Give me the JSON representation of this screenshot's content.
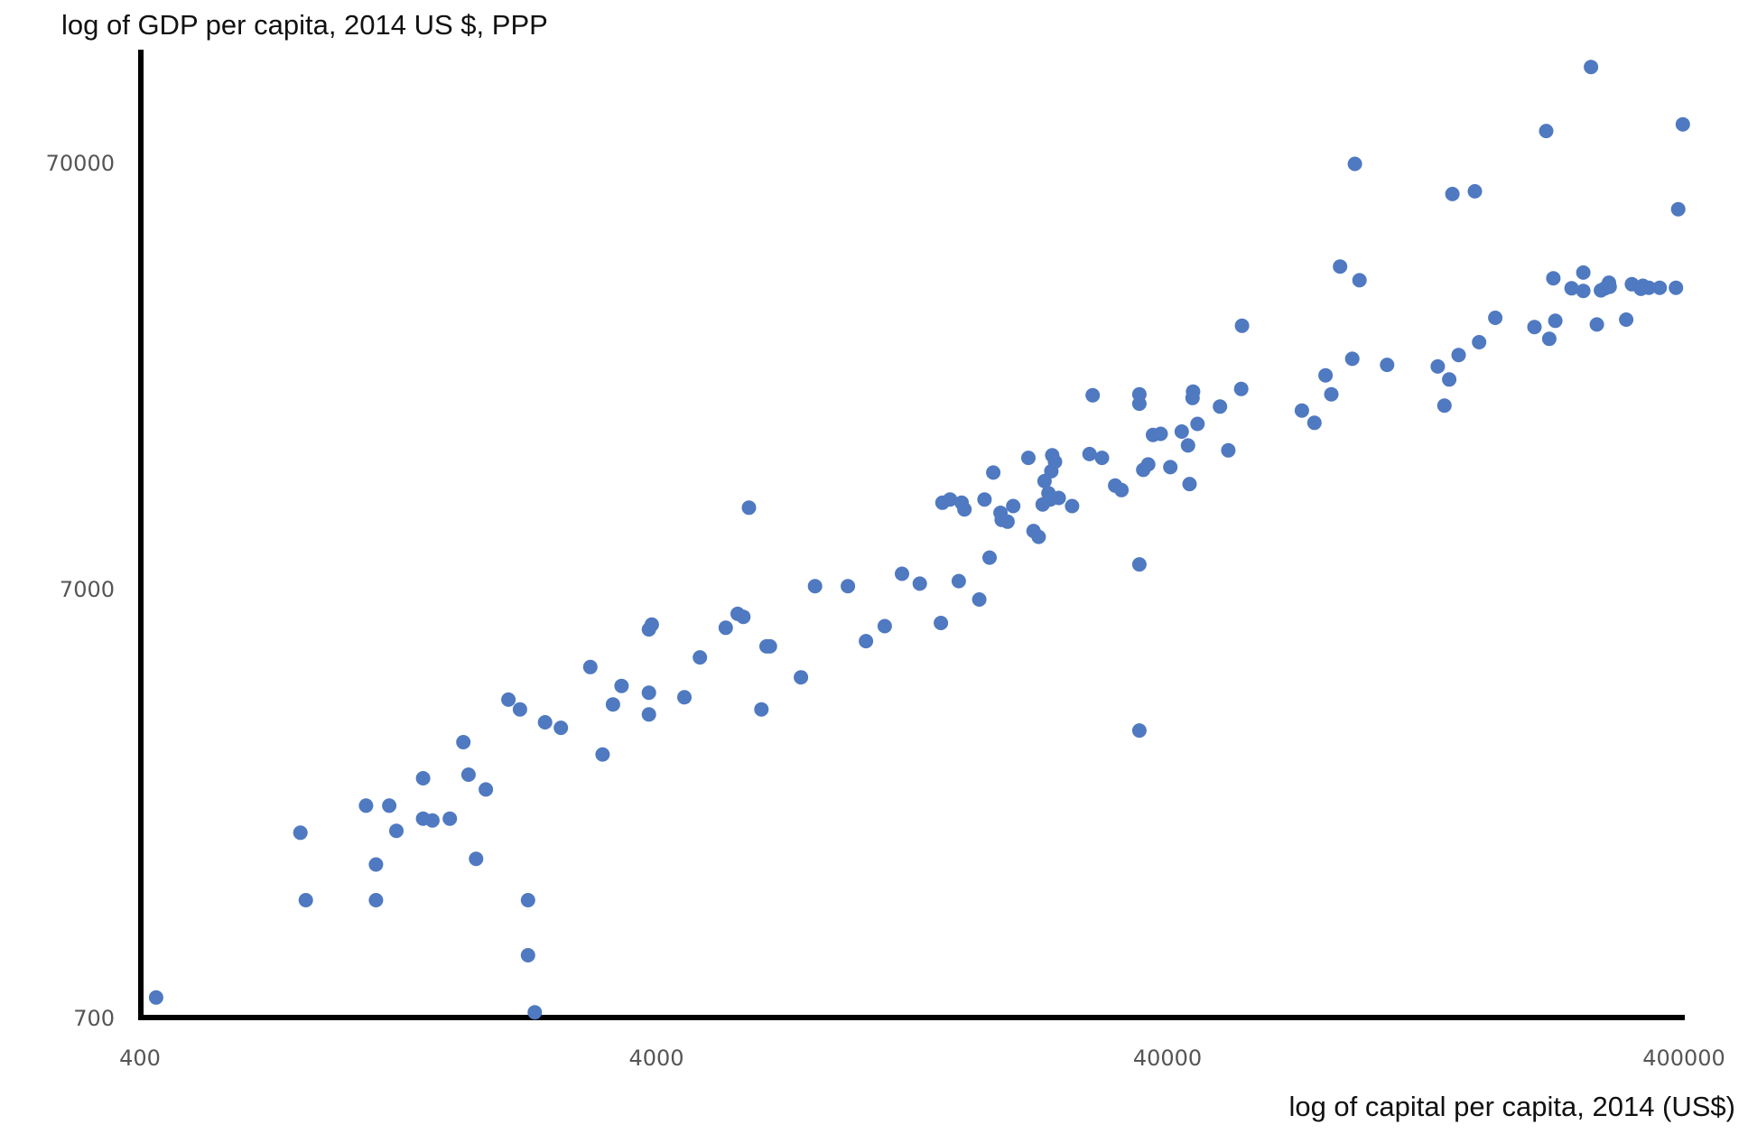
{
  "chart_data": {
    "type": "scatter",
    "title": "",
    "xlabel": "log of capital per capita, 2014 (US$)",
    "ylabel": "log of GDP per capita, 2014 US $, PPP",
    "x_scale": "log",
    "y_scale": "log",
    "xlim": [
      400,
      400000
    ],
    "ylim": [
      700,
      130000
    ],
    "x_ticks": [
      "400",
      "4000",
      "40000",
      "400000"
    ],
    "y_ticks": [
      "700",
      "7000",
      "70000"
    ],
    "grid": false,
    "legend": "none",
    "marker_color": "#4f79c0",
    "points": [
      [
        430,
        780
      ],
      [
        820,
        1900
      ],
      [
        840,
        1320
      ],
      [
        1100,
        2200
      ],
      [
        1150,
        1320
      ],
      [
        1150,
        1600
      ],
      [
        1220,
        2200
      ],
      [
        1260,
        1920
      ],
      [
        1420,
        2550
      ],
      [
        1420,
        2050
      ],
      [
        1480,
        2030
      ],
      [
        1600,
        2050
      ],
      [
        1700,
        3100
      ],
      [
        1740,
        2600
      ],
      [
        1800,
        1650
      ],
      [
        1880,
        2400
      ],
      [
        2080,
        3900
      ],
      [
        2190,
        3700
      ],
      [
        2270,
        1320
      ],
      [
        2270,
        980
      ],
      [
        2340,
        720
      ],
      [
        2450,
        3450
      ],
      [
        2630,
        3350
      ],
      [
        3000,
        4650
      ],
      [
        3170,
        2900
      ],
      [
        3320,
        3800
      ],
      [
        3450,
        4200
      ],
      [
        3900,
        5700
      ],
      [
        3900,
        4050
      ],
      [
        3900,
        3600
      ],
      [
        3950,
        5850
      ],
      [
        4570,
        3950
      ],
      [
        4900,
        4900
      ],
      [
        5500,
        5750
      ],
      [
        5800,
        6200
      ],
      [
        5950,
        6100
      ],
      [
        6100,
        11000
      ],
      [
        6450,
        3700
      ],
      [
        6600,
        5200
      ],
      [
        6700,
        5200
      ],
      [
        7700,
        4400
      ],
      [
        8200,
        7200
      ],
      [
        9500,
        7200
      ],
      [
        10300,
        5350
      ],
      [
        11200,
        5800
      ],
      [
        12100,
        7700
      ],
      [
        13100,
        7300
      ],
      [
        14400,
        5900
      ],
      [
        14500,
        11300
      ],
      [
        15000,
        11500
      ],
      [
        15600,
        7400
      ],
      [
        15800,
        11300
      ],
      [
        16000,
        10900
      ],
      [
        17100,
        6700
      ],
      [
        17500,
        11500
      ],
      [
        17900,
        8400
      ],
      [
        18200,
        13300
      ],
      [
        18800,
        10700
      ],
      [
        18900,
        10300
      ],
      [
        19400,
        10200
      ],
      [
        19900,
        11100
      ],
      [
        21300,
        14400
      ],
      [
        21800,
        9700
      ],
      [
        22300,
        9400
      ],
      [
        22700,
        11200
      ],
      [
        22900,
        12700
      ],
      [
        23300,
        11900
      ],
      [
        23500,
        11500
      ],
      [
        23600,
        13400
      ],
      [
        23700,
        14600
      ],
      [
        24000,
        14100
      ],
      [
        24400,
        11600
      ],
      [
        25900,
        11100
      ],
      [
        28000,
        14700
      ],
      [
        28400,
        20200
      ],
      [
        29600,
        14400
      ],
      [
        31400,
        12400
      ],
      [
        32300,
        12100
      ],
      [
        35000,
        20300
      ],
      [
        35000,
        19300
      ],
      [
        35000,
        8100
      ],
      [
        35000,
        3300
      ],
      [
        35600,
        13500
      ],
      [
        36400,
        13900
      ],
      [
        37200,
        16300
      ],
      [
        38500,
        16400
      ],
      [
        40200,
        13700
      ],
      [
        42300,
        16600
      ],
      [
        43500,
        15400
      ],
      [
        43800,
        12500
      ],
      [
        44400,
        19900
      ],
      [
        44500,
        20600
      ],
      [
        45400,
        17300
      ],
      [
        50200,
        19000
      ],
      [
        52100,
        15000
      ],
      [
        55200,
        20900
      ],
      [
        55400,
        29400
      ],
      [
        72400,
        18600
      ],
      [
        76600,
        17400
      ],
      [
        80500,
        22500
      ],
      [
        82600,
        20300
      ],
      [
        85900,
        40500
      ],
      [
        90700,
        24600
      ],
      [
        91800,
        70500
      ],
      [
        93700,
        37600
      ],
      [
        106000,
        23800
      ],
      [
        133000,
        23600
      ],
      [
        137000,
        19100
      ],
      [
        140000,
        22000
      ],
      [
        142000,
        59900
      ],
      [
        146000,
        25100
      ],
      [
        157000,
        60800
      ],
      [
        160000,
        26900
      ],
      [
        172000,
        30700
      ],
      [
        205000,
        29200
      ],
      [
        216000,
        84200
      ],
      [
        219000,
        27400
      ],
      [
        223000,
        38000
      ],
      [
        225000,
        30200
      ],
      [
        242000,
        36000
      ],
      [
        255000,
        35500
      ],
      [
        255000,
        39200
      ],
      [
        264000,
        119000
      ],
      [
        271000,
        29600
      ],
      [
        276000,
        35600
      ],
      [
        281000,
        36000
      ],
      [
        286000,
        37100
      ],
      [
        287000,
        36300
      ],
      [
        309000,
        30400
      ],
      [
        317000,
        36800
      ],
      [
        330000,
        35900
      ],
      [
        333000,
        36500
      ],
      [
        342000,
        36100
      ],
      [
        359000,
        36100
      ],
      [
        386000,
        36100
      ],
      [
        390000,
        55200
      ],
      [
        398000,
        87300
      ]
    ]
  }
}
